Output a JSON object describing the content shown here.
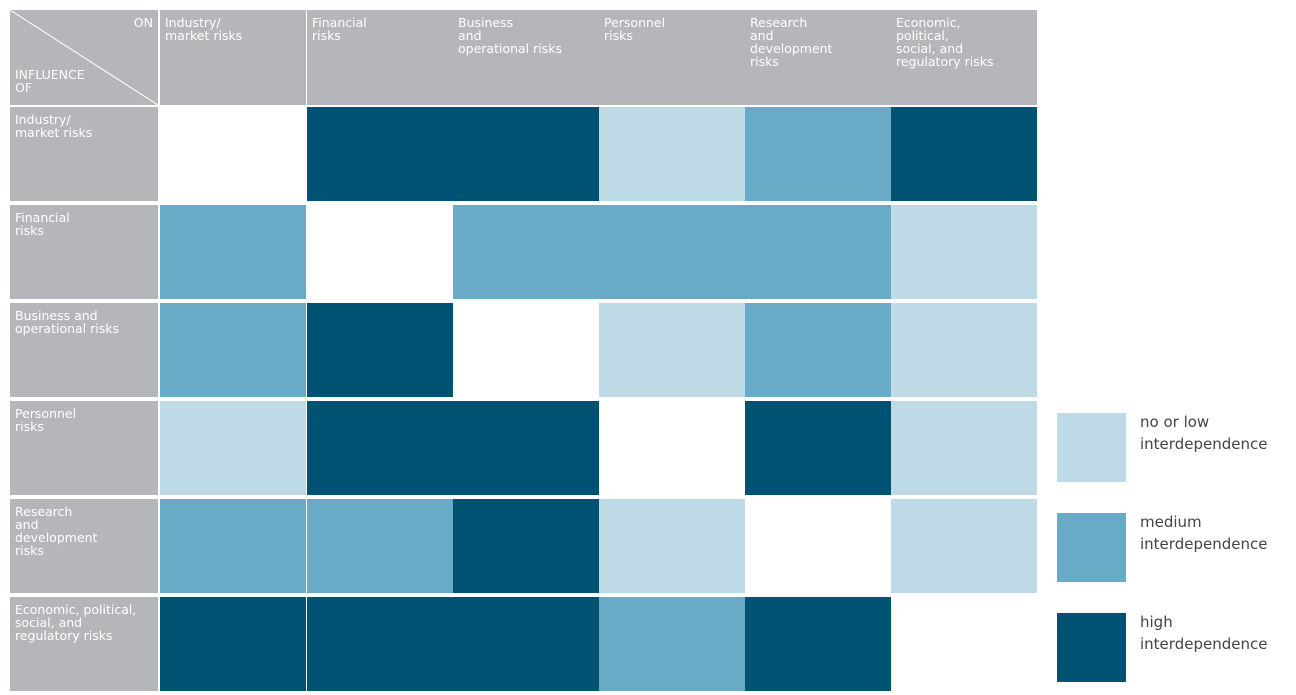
{
  "chart_data": {
    "type": "heatmap",
    "corner": {
      "column_title": "ON",
      "row_title": [
        "INFLUENCE",
        "OF"
      ]
    },
    "columns": [
      [
        "Industry/",
        "market risks"
      ],
      [
        "Financial",
        "risks"
      ],
      [
        "Business",
        "and",
        "operational risks"
      ],
      [
        "Personnel",
        "risks"
      ],
      [
        "Research",
        "and",
        "development",
        "risks"
      ],
      [
        "Economic,",
        "political,",
        "social, and",
        "regulatory risks"
      ]
    ],
    "rows": [
      [
        "Industry/",
        "market risks"
      ],
      [
        "Financial",
        "risks"
      ],
      [
        "Business and",
        "operational risks"
      ],
      [
        "Personnel",
        "risks"
      ],
      [
        "Research",
        "and",
        "development",
        "risks"
      ],
      [
        "Economic, political,",
        "social, and",
        "regulatory risks"
      ]
    ],
    "values": [
      [
        null,
        3,
        3,
        1,
        2,
        3
      ],
      [
        2,
        null,
        2,
        2,
        2,
        1
      ],
      [
        2,
        3,
        null,
        1,
        2,
        1
      ],
      [
        1,
        3,
        3,
        null,
        3,
        1
      ],
      [
        2,
        2,
        3,
        1,
        null,
        1
      ],
      [
        3,
        3,
        3,
        2,
        3,
        null
      ]
    ],
    "legend": [
      {
        "value": 1,
        "label": [
          "no or low",
          "interdependence"
        ],
        "color": "#bedae7"
      },
      {
        "value": 2,
        "label": [
          "medium",
          "interdependence"
        ],
        "color": "#69aac7"
      },
      {
        "value": 3,
        "label": [
          "high",
          "interdependence"
        ],
        "color": "#005272"
      }
    ]
  }
}
